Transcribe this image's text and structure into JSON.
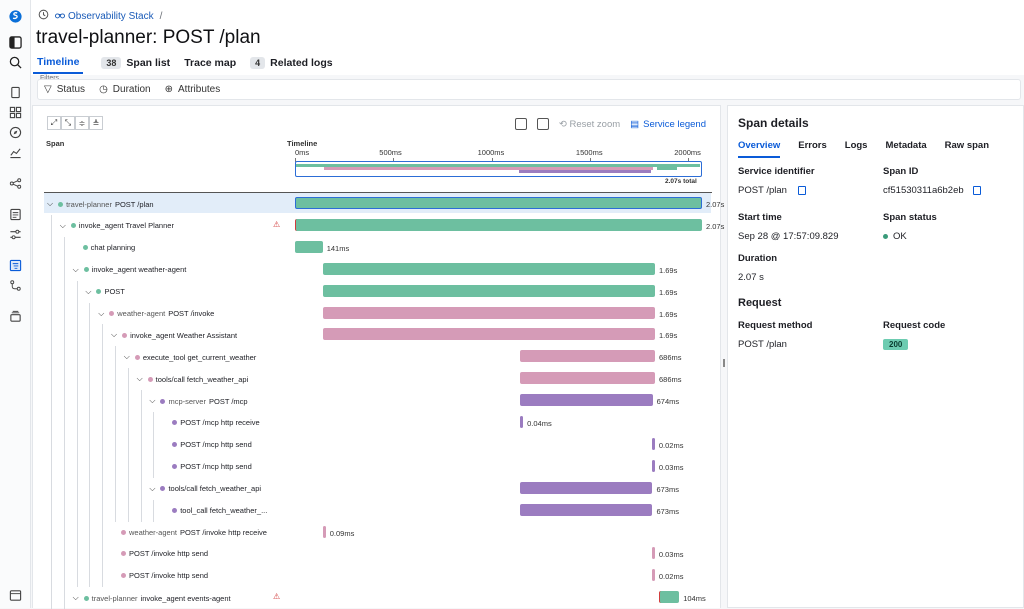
{
  "breadcrumb": {
    "link": "Observability Stack",
    "sep": "/"
  },
  "page_title": "travel-planner: POST /plan",
  "tabs": [
    {
      "label": "Timeline",
      "count": ""
    },
    {
      "label": "Span list",
      "count": "38"
    },
    {
      "label": "Trace map",
      "count": ""
    },
    {
      "label": "Related logs",
      "count": "4"
    }
  ],
  "filters": {
    "label": "Filters",
    "items": [
      "Status",
      "Duration",
      "Attributes"
    ]
  },
  "toolbar": {
    "reset_zoom": "Reset zoom",
    "service_legend": "Service legend"
  },
  "columns": {
    "span": "Span",
    "timeline": "Timeline"
  },
  "axis": {
    "ticks": [
      {
        "label": "0ms",
        "v": 0
      },
      {
        "label": "500ms",
        "v": 500
      },
      {
        "label": "1000ms",
        "v": 1000
      },
      {
        "label": "1500ms",
        "v": 1500
      },
      {
        "label": "2000ms",
        "v": 2000
      }
    ],
    "max_ms": 2070,
    "total": "2.07s total"
  },
  "colors": {
    "green": "#6dbfa0",
    "pink": "#d59bb7",
    "purple": "#9b7cc0",
    "accent": "#0a5bd8"
  },
  "spans": [
    {
      "svc": "travel-planner",
      "name": "POST /plan",
      "depth": 0,
      "color": "green",
      "start": 0,
      "dur": 2070,
      "label": "2.07s",
      "chev": true,
      "selected": true,
      "err": false,
      "warn": false
    },
    {
      "svc": "",
      "name": "invoke_agent Travel Planner",
      "depth": 1,
      "color": "green",
      "start": 0,
      "dur": 2070,
      "label": "2.07s",
      "chev": true,
      "err": true,
      "warn": true
    },
    {
      "svc": "",
      "name": "chat planning",
      "depth": 2,
      "color": "green",
      "start": 0,
      "dur": 141,
      "label": "141ms"
    },
    {
      "svc": "",
      "name": "invoke_agent weather-agent",
      "depth": 2,
      "color": "green",
      "start": 141,
      "dur": 1690,
      "label": "1.69s",
      "chev": true
    },
    {
      "svc": "",
      "name": "POST",
      "depth": 3,
      "color": "green",
      "start": 141,
      "dur": 1690,
      "label": "1.69s",
      "chev": true
    },
    {
      "svc": "weather-agent",
      "name": "POST /invoke",
      "depth": 4,
      "color": "pink",
      "start": 141,
      "dur": 1690,
      "label": "1.69s",
      "chev": true
    },
    {
      "svc": "",
      "name": "invoke_agent Weather Assistant",
      "depth": 5,
      "color": "pink",
      "start": 141,
      "dur": 1690,
      "label": "1.69s",
      "chev": true
    },
    {
      "svc": "",
      "name": "execute_tool get_current_weather",
      "depth": 6,
      "color": "pink",
      "start": 1145,
      "dur": 686,
      "label": "686ms",
      "chev": true
    },
    {
      "svc": "",
      "name": "tools/call fetch_weather_api",
      "depth": 7,
      "color": "pink",
      "start": 1145,
      "dur": 686,
      "label": "686ms",
      "chev": true
    },
    {
      "svc": "mcp-server",
      "name": "POST /mcp",
      "depth": 8,
      "color": "purple",
      "start": 1145,
      "dur": 674,
      "label": "674ms",
      "chev": true
    },
    {
      "svc": "",
      "name": "POST /mcp http receive",
      "depth": 9,
      "color": "purple",
      "start": 1145,
      "dur": 0.04,
      "label": "0.04ms"
    },
    {
      "svc": "",
      "name": "POST /mcp http send",
      "depth": 9,
      "color": "purple",
      "start": 1815,
      "dur": 0.02,
      "label": "0.02ms"
    },
    {
      "svc": "",
      "name": "POST /mcp http send",
      "depth": 9,
      "color": "purple",
      "start": 1815,
      "dur": 0.03,
      "label": "0.03ms"
    },
    {
      "svc": "",
      "name": "tools/call fetch_weather_api",
      "depth": 8,
      "color": "purple",
      "start": 1145,
      "dur": 673,
      "label": "673ms",
      "chev": true
    },
    {
      "svc": "",
      "name": "tool_call fetch_weather_...",
      "depth": 9,
      "color": "purple",
      "start": 1145,
      "dur": 673,
      "label": "673ms"
    },
    {
      "svc": "weather-agent",
      "name": "POST /invoke http receive",
      "depth": 5,
      "color": "pink",
      "start": 141,
      "dur": 0.09,
      "label": "0.09ms"
    },
    {
      "svc": "",
      "name": "POST /invoke http send",
      "depth": 5,
      "color": "pink",
      "start": 1815,
      "dur": 0.03,
      "label": "0.03ms"
    },
    {
      "svc": "",
      "name": "POST /invoke http send",
      "depth": 5,
      "color": "pink",
      "start": 1815,
      "dur": 0.02,
      "label": "0.02ms"
    },
    {
      "svc": "travel-planner",
      "name": "invoke_agent events-agent",
      "depth": 2,
      "color": "green",
      "start": 1850,
      "dur": 104,
      "label": "104ms",
      "chev": true,
      "err": true,
      "warn": true
    }
  ],
  "details": {
    "title": "Span details",
    "tabs": [
      "Overview",
      "Errors",
      "Logs",
      "Metadata",
      "Raw span"
    ],
    "service_identifier": {
      "k": "Service identifier",
      "v": "POST /plan"
    },
    "span_id": {
      "k": "Span ID",
      "v": "cf51530311a6b2eb"
    },
    "start_time": {
      "k": "Start time",
      "v": "Sep 28 @ 17:57:09.829"
    },
    "span_status": {
      "k": "Span status",
      "v": "OK"
    },
    "duration": {
      "k": "Duration",
      "v": "2.07 s"
    },
    "request": {
      "title": "Request",
      "method_k": "Request method",
      "method_v": "POST /plan",
      "code_k": "Request code",
      "code_v": "200"
    }
  }
}
